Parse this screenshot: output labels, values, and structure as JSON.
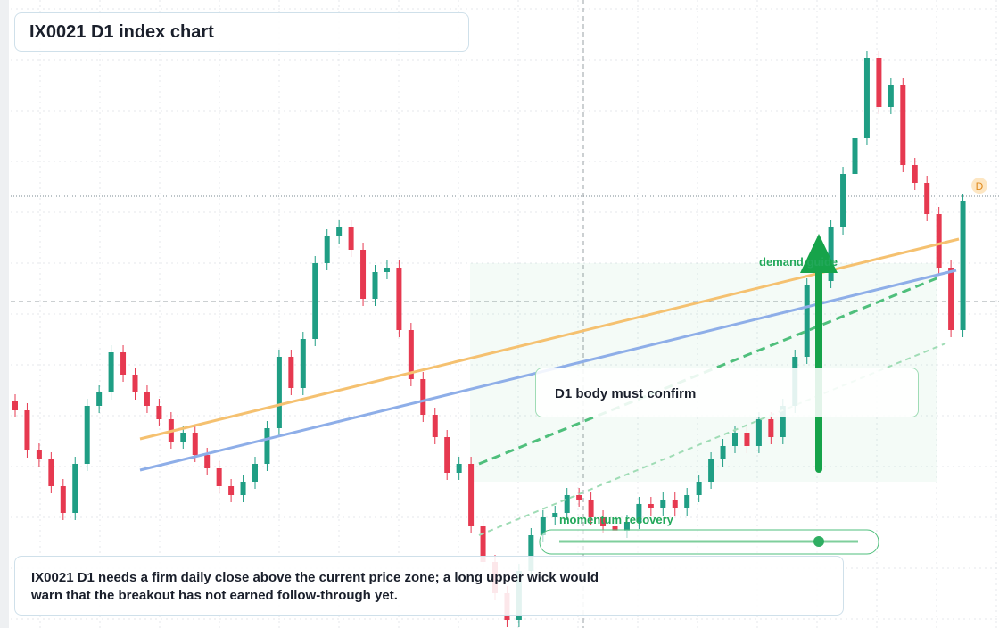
{
  "title": "IX0021 D1 index chart",
  "annotations": {
    "demand": "demand guide",
    "momentum": "momentum recovery",
    "confirm": "D1 body must confirm",
    "badge": "D"
  },
  "note": "IX0021 D1 needs a firm daily close above the current price zone; a long upper wick would warn that the breakout has not earned follow-through yet.",
  "chart_data": {
    "type": "candlestick",
    "ylim": [
      0,
      704
    ],
    "up_color": "#1f9e84",
    "down_color": "#e63950",
    "open": [
      254,
      244,
      199,
      189,
      159,
      129,
      184,
      249,
      264,
      309,
      284,
      264,
      249,
      234,
      209,
      219,
      194,
      179,
      159,
      149,
      164,
      184,
      224,
      304,
      269,
      324,
      409,
      439,
      449,
      424,
      369,
      399,
      404,
      334,
      279,
      239,
      214,
      174,
      184,
      114,
      74,
      39,
      9,
      64,
      104,
      124,
      129,
      149,
      144,
      124,
      114,
      109,
      119,
      139,
      134,
      144,
      134,
      149,
      164,
      189,
      204,
      219,
      204,
      234,
      214,
      249,
      304,
      384,
      389,
      449,
      509,
      549,
      639,
      584,
      609,
      519,
      499,
      464,
      404,
      334
    ],
    "high": [
      262,
      252,
      207,
      197,
      167,
      192,
      257,
      272,
      317,
      317,
      292,
      272,
      257,
      242,
      227,
      227,
      202,
      187,
      167,
      172,
      192,
      232,
      312,
      312,
      332,
      417,
      447,
      457,
      457,
      432,
      407,
      412,
      412,
      342,
      287,
      247,
      222,
      192,
      192,
      122,
      82,
      47,
      72,
      112,
      132,
      137,
      157,
      157,
      152,
      132,
      122,
      127,
      147,
      147,
      152,
      152,
      157,
      172,
      197,
      212,
      227,
      227,
      242,
      242,
      257,
      312,
      392,
      397,
      457,
      517,
      557,
      647,
      647,
      617,
      617,
      527,
      507,
      472,
      412,
      487
    ],
    "low": [
      236,
      191,
      181,
      151,
      121,
      121,
      176,
      241,
      256,
      276,
      256,
      241,
      226,
      201,
      201,
      186,
      171,
      151,
      141,
      141,
      156,
      176,
      216,
      261,
      261,
      316,
      401,
      431,
      416,
      361,
      361,
      391,
      326,
      271,
      231,
      206,
      166,
      166,
      106,
      66,
      31,
      1,
      1,
      56,
      96,
      116,
      121,
      136,
      116,
      106,
      101,
      101,
      111,
      126,
      126,
      126,
      126,
      141,
      156,
      181,
      196,
      196,
      196,
      206,
      206,
      241,
      296,
      376,
      381,
      441,
      501,
      541,
      576,
      576,
      511,
      491,
      456,
      396,
      326,
      326
    ],
    "close": [
      244,
      199,
      189,
      159,
      129,
      184,
      249,
      264,
      309,
      284,
      264,
      249,
      234,
      209,
      219,
      194,
      179,
      159,
      149,
      164,
      184,
      224,
      304,
      269,
      324,
      409,
      439,
      449,
      424,
      369,
      399,
      404,
      334,
      279,
      239,
      214,
      174,
      184,
      114,
      74,
      39,
      9,
      64,
      104,
      124,
      129,
      149,
      144,
      124,
      114,
      109,
      119,
      139,
      134,
      144,
      134,
      149,
      164,
      189,
      204,
      219,
      204,
      234,
      214,
      249,
      304,
      384,
      389,
      449,
      509,
      549,
      639,
      584,
      609,
      519,
      499,
      464,
      404,
      334,
      479
    ]
  }
}
